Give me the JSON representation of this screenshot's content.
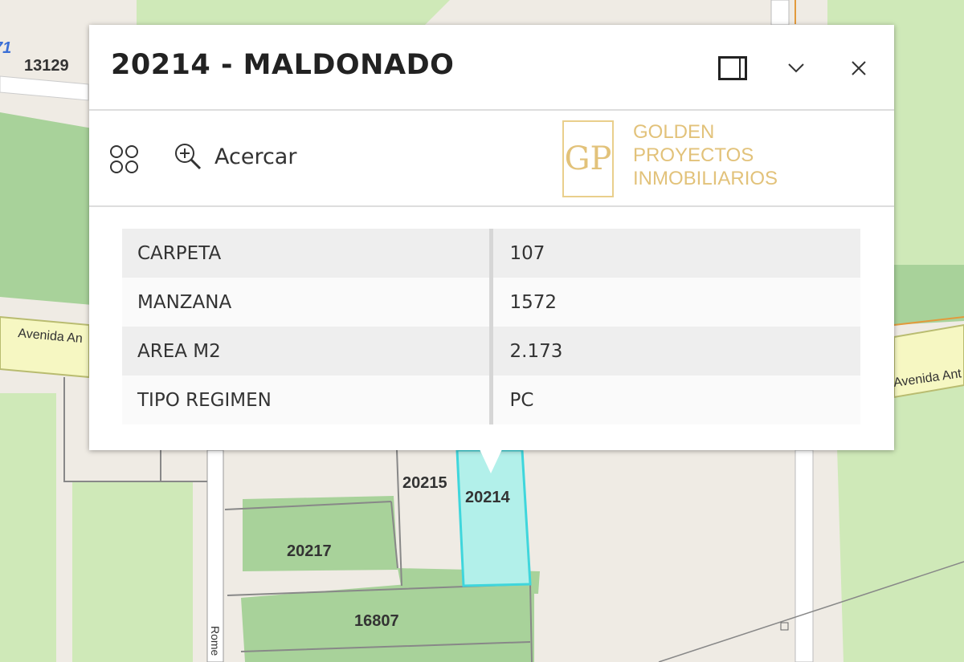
{
  "map": {
    "labels": {
      "partial_blue": "71",
      "parcel_13129": "13129",
      "parcel_20215": "20215",
      "parcel_20214": "20214",
      "parcel_20217": "20217",
      "parcel_16807": "16807",
      "road_left": "Avenida An",
      "road_right": "Avenida Ant",
      "road_vertical": "Rome"
    },
    "colors": {
      "selected_parcel": "#b2f0ea",
      "selected_outline": "#3fd6dc",
      "park": "#cfe9b8",
      "wooded": "#a8d29a",
      "avenue": "#f6f7c2"
    }
  },
  "popup": {
    "title": "20214 - MALDONADO",
    "header_buttons": [
      {
        "icon": "dock-icon"
      },
      {
        "icon": "chevron-down-icon"
      },
      {
        "icon": "close-icon"
      }
    ],
    "toolbar": {
      "more_icon": "four-circles-icon",
      "zoom_label": "Acercar",
      "zoom_icon": "zoom-in-icon"
    },
    "attributes": [
      {
        "key": "CARPETA",
        "value": "107"
      },
      {
        "key": "MANZANA",
        "value": "1572"
      },
      {
        "key": "AREA M2",
        "value": "2.173"
      },
      {
        "key": "TIPO REGIMEN",
        "value": "PC"
      }
    ]
  },
  "watermark": {
    "monogram": "GP",
    "line1": "GOLDEN",
    "line2": "PROYECTOS",
    "line3": "INMOBILIARIOS"
  }
}
